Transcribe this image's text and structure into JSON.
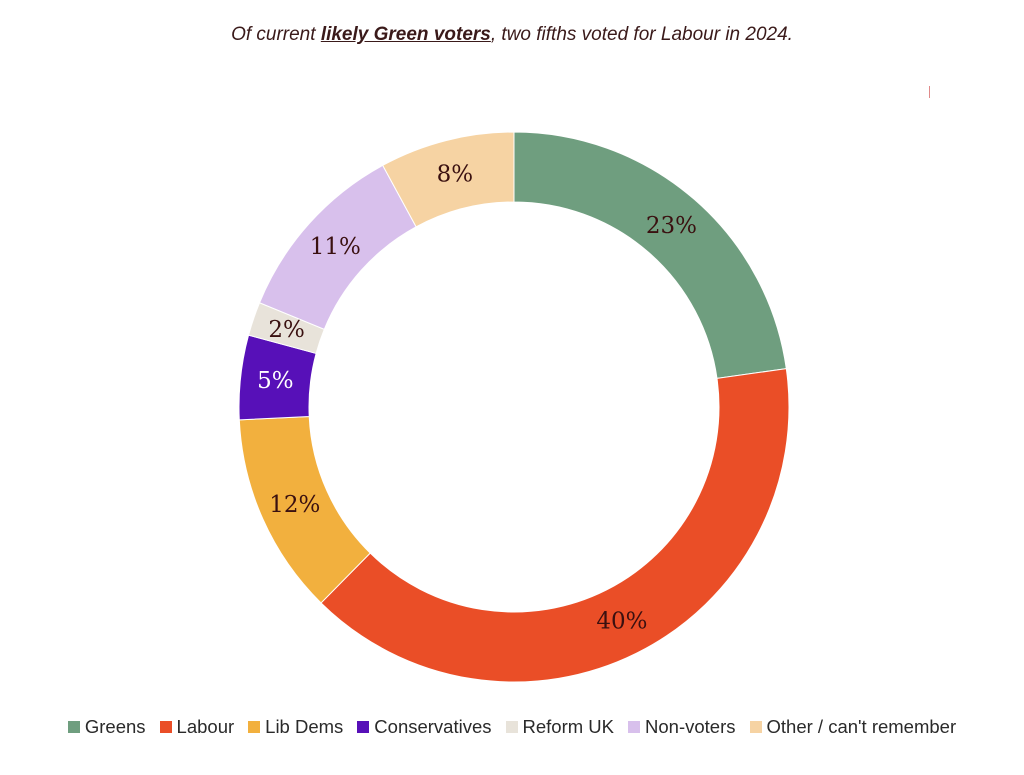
{
  "subtitle": {
    "prefix": "Of current ",
    "emphasis": "likely Green voters",
    "suffix": ", two fifths voted for Labour in 2024."
  },
  "chart_data": {
    "type": "pie",
    "variant": "donut",
    "unit": "%",
    "legend_position": "bottom",
    "categories": [
      "Greens",
      "Labour",
      "Lib Dems",
      "Conservatives",
      "Reform UK",
      "Non-voters",
      "Other / can't remember"
    ],
    "values": [
      23,
      40,
      12,
      5,
      2,
      11,
      8
    ],
    "labels": [
      "23%",
      "40%",
      "12%",
      "5%",
      "2%",
      "11%",
      "8%"
    ],
    "colors": [
      "#6f9e7f",
      "#ea4e27",
      "#f2b03e",
      "#5710b8",
      "#e8e3da",
      "#d8c0ec",
      "#f6d3a3"
    ],
    "label_colors": [
      "#3a1010",
      "#3a1010",
      "#3a1010",
      "#ffffff",
      "#3a1010",
      "#3a1010",
      "#3a1010"
    ]
  }
}
